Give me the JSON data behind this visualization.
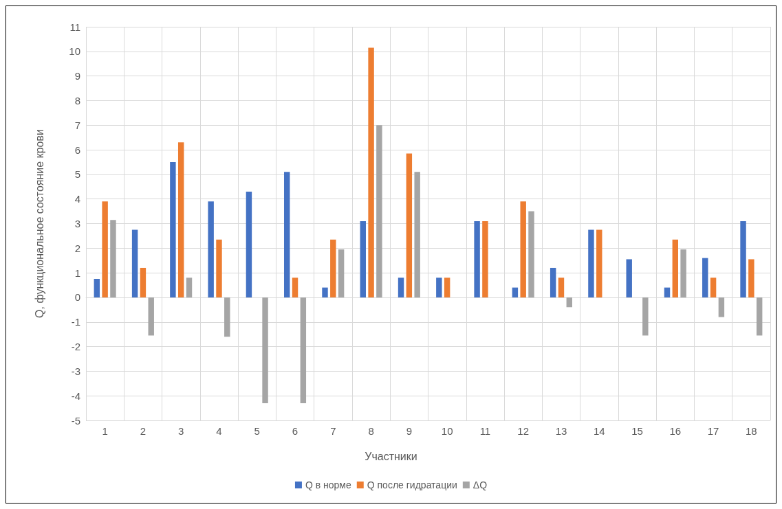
{
  "chart_data": {
    "type": "bar",
    "xlabel": "Участники",
    "ylabel": "Q, функциональное состояние крови",
    "categories": [
      "1",
      "2",
      "3",
      "4",
      "5",
      "6",
      "7",
      "8",
      "9",
      "10",
      "11",
      "12",
      "13",
      "14",
      "15",
      "16",
      "17",
      "18"
    ],
    "series": [
      {
        "name": "Q в норме",
        "color": "#4472c4",
        "values": [
          0.75,
          2.75,
          5.5,
          3.9,
          4.3,
          5.1,
          0.4,
          3.1,
          0.8,
          0.8,
          3.1,
          0.4,
          1.2,
          2.75,
          1.55,
          0.4,
          1.6,
          3.1
        ]
      },
      {
        "name": "Q после гидратации",
        "color": "#ed7d31",
        "values": [
          3.9,
          1.2,
          6.3,
          2.35,
          0,
          0.8,
          2.35,
          10.15,
          5.85,
          0.8,
          3.1,
          3.9,
          0.8,
          2.75,
          0,
          2.35,
          0.8,
          1.55
        ]
      },
      {
        "name": "ΔQ",
        "color": "#a5a5a5",
        "values": [
          3.15,
          -1.55,
          0.8,
          -1.6,
          -4.3,
          -4.3,
          1.95,
          7.0,
          5.1,
          0,
          0,
          3.5,
          -0.4,
          0,
          -1.55,
          1.95,
          -0.8,
          -1.55
        ]
      }
    ],
    "ylim": [
      -5,
      11
    ],
    "yticks": [
      -5,
      -4,
      -3,
      -2,
      -1,
      0,
      1,
      2,
      3,
      4,
      5,
      6,
      7,
      8,
      9,
      10,
      11
    ],
    "grid": true,
    "legend": "bottom"
  }
}
